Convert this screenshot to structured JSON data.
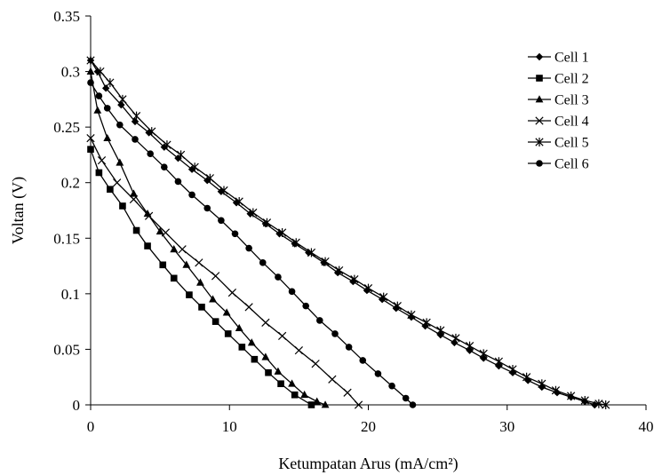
{
  "chart_data": {
    "type": "line",
    "title": "",
    "xlabel": "Ketumpatan Arus (mA/cm²)",
    "ylabel": "Voltan (V)",
    "xlim": [
      0,
      40
    ],
    "ylim": [
      0,
      0.35
    ],
    "xticks": [
      "0",
      "10",
      "20",
      "30",
      "40"
    ],
    "yticks": [
      "0",
      "0.05",
      "0.1",
      "0.15",
      "0.2",
      "0.25",
      "0.3",
      "0.35"
    ],
    "grid": false,
    "legend_position": "top-right",
    "series": [
      {
        "name": "Cell 1",
        "marker": "diamond",
        "x": [
          0,
          0.5,
          1.1,
          2.2,
          3.2,
          4.2,
          5.3,
          6.3,
          7.3,
          8.4,
          9.4,
          10.5,
          11.5,
          12.6,
          13.6,
          14.7,
          15.7,
          16.8,
          17.8,
          18.9,
          19.9,
          21.0,
          22.0,
          23.1,
          24.1,
          25.2,
          26.2,
          27.3,
          28.3,
          29.4,
          30.4,
          31.5,
          32.5,
          33.6,
          34.6,
          35.6,
          36.3
        ],
        "y": [
          0.31,
          0.3,
          0.285,
          0.27,
          0.255,
          0.245,
          0.232,
          0.222,
          0.212,
          0.202,
          0.192,
          0.182,
          0.172,
          0.163,
          0.154,
          0.145,
          0.137,
          0.128,
          0.119,
          0.111,
          0.103,
          0.095,
          0.087,
          0.079,
          0.071,
          0.063,
          0.056,
          0.049,
          0.042,
          0.035,
          0.029,
          0.022,
          0.016,
          0.011,
          0.007,
          0.003,
          0.0
        ]
      },
      {
        "name": "Cell 2",
        "marker": "square",
        "x": [
          0,
          0.6,
          1.4,
          2.3,
          3.3,
          4.1,
          5.2,
          6.0,
          7.1,
          8.0,
          9.0,
          9.9,
          10.9,
          11.8,
          12.8,
          13.7,
          14.7,
          15.9
        ],
        "y": [
          0.23,
          0.209,
          0.194,
          0.179,
          0.157,
          0.143,
          0.126,
          0.114,
          0.099,
          0.088,
          0.075,
          0.064,
          0.052,
          0.041,
          0.029,
          0.019,
          0.009,
          0.0
        ]
      },
      {
        "name": "Cell 3",
        "marker": "triangle",
        "x": [
          0,
          0.5,
          1.2,
          2.1,
          3.1,
          4.1,
          5.0,
          6.0,
          6.9,
          7.9,
          8.8,
          9.8,
          10.7,
          11.6,
          12.6,
          13.5,
          14.5,
          15.4,
          16.3,
          16.9
        ],
        "y": [
          0.3,
          0.265,
          0.24,
          0.218,
          0.19,
          0.172,
          0.156,
          0.14,
          0.126,
          0.11,
          0.095,
          0.083,
          0.069,
          0.056,
          0.043,
          0.03,
          0.019,
          0.009,
          0.003,
          0.0
        ]
      },
      {
        "name": "Cell 4",
        "marker": "x",
        "x": [
          0,
          0.8,
          1.9,
          3.1,
          4.2,
          5.4,
          6.6,
          7.8,
          9.0,
          10.2,
          11.4,
          12.6,
          13.8,
          15.0,
          16.2,
          17.4,
          18.5,
          19.3
        ],
        "y": [
          0.24,
          0.22,
          0.2,
          0.185,
          0.17,
          0.155,
          0.14,
          0.128,
          0.116,
          0.101,
          0.088,
          0.074,
          0.062,
          0.049,
          0.037,
          0.023,
          0.011,
          0.0
        ]
      },
      {
        "name": "Cell 5",
        "marker": "star",
        "x": [
          0,
          0.7,
          1.4,
          2.3,
          3.3,
          4.4,
          5.5,
          6.5,
          7.5,
          8.6,
          9.6,
          10.7,
          11.7,
          12.7,
          13.8,
          14.8,
          15.9,
          16.9,
          17.9,
          19.0,
          20.0,
          21.1,
          22.1,
          23.1,
          24.2,
          25.2,
          26.3,
          27.3,
          28.3,
          29.4,
          30.4,
          31.4,
          32.5,
          33.5,
          34.6,
          35.6,
          36.6,
          37.1
        ],
        "y": [
          0.31,
          0.3,
          0.29,
          0.275,
          0.26,
          0.246,
          0.234,
          0.225,
          0.214,
          0.204,
          0.193,
          0.183,
          0.173,
          0.164,
          0.155,
          0.146,
          0.137,
          0.129,
          0.121,
          0.113,
          0.105,
          0.097,
          0.089,
          0.081,
          0.074,
          0.067,
          0.06,
          0.053,
          0.046,
          0.039,
          0.032,
          0.025,
          0.019,
          0.013,
          0.008,
          0.004,
          0.001,
          0.0
        ]
      },
      {
        "name": "Cell 6",
        "marker": "circle",
        "x": [
          0,
          0.6,
          1.2,
          2.1,
          3.2,
          4.3,
          5.3,
          6.3,
          7.3,
          8.4,
          9.4,
          10.4,
          11.4,
          12.4,
          13.5,
          14.5,
          15.5,
          16.5,
          17.6,
          18.6,
          19.6,
          20.7,
          21.7,
          22.7,
          23.2
        ],
        "y": [
          0.29,
          0.278,
          0.267,
          0.252,
          0.239,
          0.226,
          0.214,
          0.201,
          0.189,
          0.177,
          0.166,
          0.154,
          0.141,
          0.128,
          0.115,
          0.102,
          0.089,
          0.076,
          0.064,
          0.052,
          0.04,
          0.028,
          0.017,
          0.006,
          0.0
        ]
      }
    ]
  }
}
